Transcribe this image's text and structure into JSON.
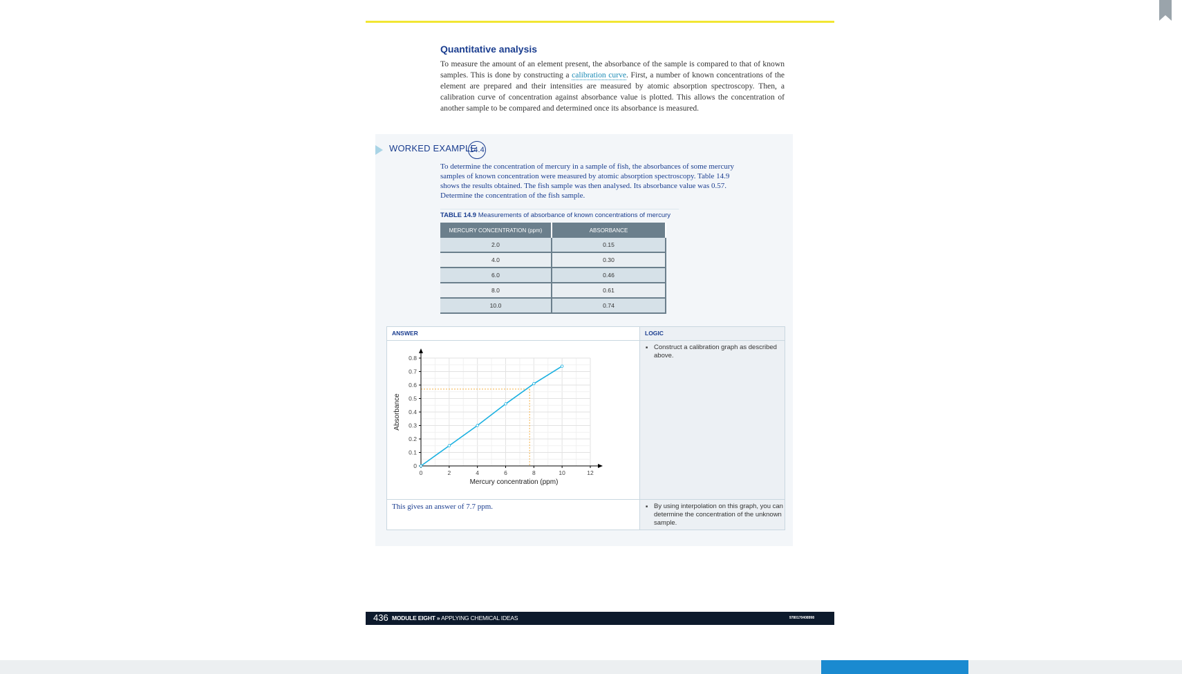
{
  "section": {
    "title": "Quantitative analysis",
    "intro_before": "To measure the amount of an element present, the absorbance of the sample is compared to that of known samples. This is done by constructing a ",
    "intro_link": "calibration curve",
    "intro_after": ". First, a number of known concentrations of the element are prepared and their intensities are measured by atomic absorption spectroscopy. Then, a calibration curve of concentration against absorbance value is plotted. This allows the concentration of another sample to be compared and determined once its absorbance is measured."
  },
  "example": {
    "label": "WORKED EXAMPLE",
    "number": "14.4",
    "problem": "To determine the concentration of mercury in a sample of fish, the absorbances of some mercury samples of known concentration were measured by atomic absorption spectroscopy. Table 14.9 shows the results obtained. The fish sample was then analysed. Its absorbance value was 0.57. Determine the concentration of the fish sample."
  },
  "table": {
    "caption_num": "TABLE 14.9",
    "caption_text": "Measurements of absorbance of known concentrations of mercury",
    "headers": [
      "MERCURY CONCENTRATION (ppm)",
      "ABSORBANCE"
    ],
    "rows": [
      [
        "2.0",
        "0.15"
      ],
      [
        "4.0",
        "0.30"
      ],
      [
        "6.0",
        "0.46"
      ],
      [
        "8.0",
        "0.61"
      ],
      [
        "10.0",
        "0.74"
      ]
    ]
  },
  "answer": {
    "label": "ANSWER",
    "result": "This gives an answer of 7.7 ppm."
  },
  "logic": {
    "label": "LOGIC",
    "step1": "Construct a calibration graph as described above.",
    "step2": "By using interpolation on this graph, you can determine the concentration of the unknown sample."
  },
  "chart_data": {
    "type": "line",
    "xlabel": "Mercury concentration (ppm)",
    "ylabel": "Absorbance",
    "xlim": [
      0,
      12
    ],
    "ylim": [
      0,
      0.8
    ],
    "x_ticks": [
      "0",
      "2",
      "4",
      "6",
      "8",
      "10",
      "12"
    ],
    "y_ticks": [
      "0",
      "0.1",
      "0.2",
      "0.3",
      "0.4",
      "0.5",
      "0.6",
      "0.7",
      "0.8"
    ],
    "grid": true,
    "points": [
      {
        "x": 0,
        "y": 0
      },
      {
        "x": 2,
        "y": 0.15
      },
      {
        "x": 4,
        "y": 0.3
      },
      {
        "x": 6,
        "y": 0.46
      },
      {
        "x": 8,
        "y": 0.61
      },
      {
        "x": 10,
        "y": 0.74
      }
    ],
    "interpolation": {
      "x": 7.7,
      "y": 0.57
    },
    "line_color": "#1ab0e0",
    "guide_color": "#f5b041"
  },
  "footer": {
    "page": "436",
    "module_bold": "MODULE EIGHT »",
    "module_text": " APPLYING CHEMICAL IDEAS",
    "isbn": "9780170408998"
  }
}
